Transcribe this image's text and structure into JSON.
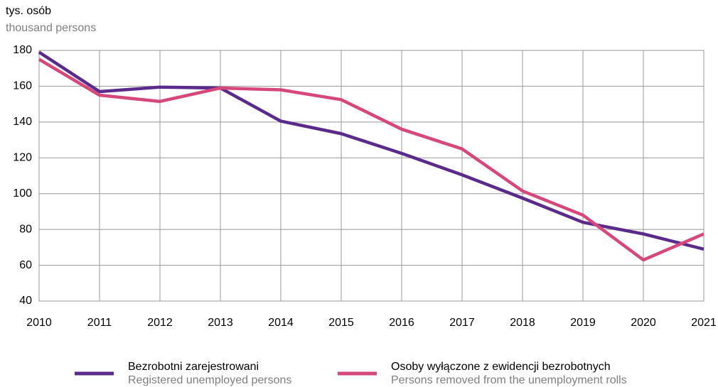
{
  "chart_data": {
    "type": "line",
    "ylabel": "tys. osób",
    "ylabel_en": "thousand persons",
    "x": [
      2010,
      2011,
      2012,
      2013,
      2014,
      2015,
      2016,
      2017,
      2018,
      2019,
      2020,
      2021
    ],
    "xlim": [
      2010,
      2021
    ],
    "xticks": [
      2010,
      2011,
      2012,
      2013,
      2014,
      2015,
      2016,
      2017,
      2018,
      2019,
      2020,
      2021
    ],
    "ylim": [
      40,
      180
    ],
    "yticks": [
      40,
      60,
      80,
      100,
      120,
      140,
      160,
      180
    ],
    "grid": true,
    "series": [
      {
        "name": "Bezrobotni zarejestrowani",
        "name_en": "Registered unemployed persons",
        "color": "#5b2b8c",
        "values": [
          179,
          157,
          159.5,
          159,
          140.5,
          133.5,
          122.5,
          110.5,
          97.5,
          84,
          77.5,
          69
        ]
      },
      {
        "name": "Osoby wyłączone z ewidencji bezrobotnych",
        "name_en": "Persons removed from the unemployment rolls",
        "color": "#d6477c",
        "values": [
          175,
          155,
          151.5,
          159,
          158,
          152.5,
          136,
          125,
          101.5,
          88,
          63,
          77.5
        ]
      }
    ]
  }
}
